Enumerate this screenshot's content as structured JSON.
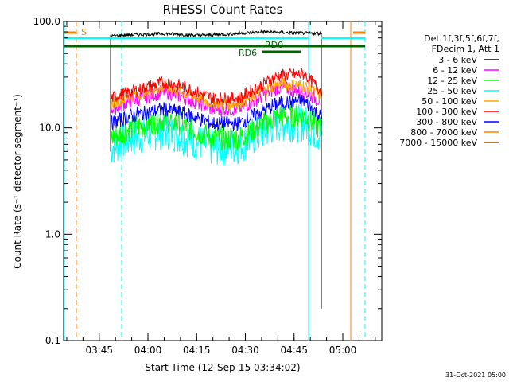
{
  "chart_data": {
    "type": "line",
    "title": "RHESSI Count Rates",
    "xlabel": "Start Time (12-Sep-15 03:34:02)",
    "ylabel": "Count Rate (s⁻¹ detector segment⁻¹)",
    "yscale": "log",
    "ylim": [
      0.1,
      100
    ],
    "xlim": [
      "03:34:02",
      "05:12:00"
    ],
    "ytick_labels": [
      "0.1",
      "1.0",
      "10.0",
      "100.0"
    ],
    "yticks": [
      0.1,
      1,
      10,
      100
    ],
    "xtick_labels": [
      "03:45",
      "04:00",
      "04:15",
      "04:30",
      "04:45",
      "05:00"
    ],
    "xticks": [
      "03:45",
      "04:00",
      "04:15",
      "04:30",
      "04:45",
      "05:00"
    ],
    "legend_header": [
      "Det 1f,3f,5f,6f,7f,",
      "FDecim 1, Att 1"
    ],
    "legend_placement": "right",
    "data_start": "03:48:30",
    "data_end": "04:53:30",
    "series": [
      {
        "name": "3 - 6 keV",
        "color": "#000000",
        "x": [
          "03:48:30",
          "03:55",
          "04:05",
          "04:15",
          "04:25",
          "04:35",
          "04:45",
          "04:53"
        ],
        "values": [
          73,
          75,
          77,
          74,
          76,
          80,
          78,
          77
        ]
      },
      {
        "name": "6 - 12 keV",
        "color": "#ff00ff",
        "x": [
          "03:48:30",
          "03:55",
          "04:05",
          "04:10",
          "04:20",
          "04:28",
          "04:40",
          "04:48",
          "04:53"
        ],
        "values": [
          15,
          18,
          22,
          20,
          15,
          15,
          24,
          22,
          18
        ]
      },
      {
        "name": "12 - 25 keV",
        "color": "#00ff00",
        "x": [
          "03:48:30",
          "03:55",
          "04:05",
          "04:10",
          "04:20",
          "04:28",
          "04:40",
          "04:48",
          "04:53"
        ],
        "values": [
          8,
          10,
          12,
          11,
          8,
          8,
          13,
          13,
          10
        ]
      },
      {
        "name": "25 - 50 keV",
        "color": "#00ffff",
        "x": [
          "03:48:30",
          "03:55",
          "04:05",
          "04:10",
          "04:20",
          "04:28",
          "04:40",
          "04:48",
          "04:53"
        ],
        "values": [
          6.5,
          8,
          9.5,
          8.5,
          6.5,
          6.8,
          11,
          11,
          8.5
        ]
      },
      {
        "name": "50 - 100 keV",
        "color": "#ffa500",
        "x": [
          "03:48:30",
          "03:55",
          "04:05",
          "04:10",
          "04:20",
          "04:28",
          "04:40",
          "04:48",
          "04:53"
        ],
        "values": [
          17,
          20,
          24,
          22,
          17,
          17,
          26,
          25,
          20
        ]
      },
      {
        "name": "100 - 300 keV",
        "color": "#ff0000",
        "x": [
          "03:48:30",
          "03:55",
          "04:05",
          "04:10",
          "04:20",
          "04:28",
          "04:40",
          "04:48",
          "04:53"
        ],
        "values": [
          19,
          22,
          27,
          25,
          19,
          19,
          31,
          32,
          23
        ]
      },
      {
        "name": "300 - 800 keV",
        "color": "#0000ff",
        "x": [
          "03:48:30",
          "03:55",
          "04:05",
          "04:10",
          "04:20",
          "04:28",
          "04:40",
          "04:48",
          "04:53"
        ],
        "values": [
          11,
          13,
          15,
          14,
          11,
          11,
          17,
          18,
          13
        ]
      },
      {
        "name": "800 - 7000 keV",
        "color": "#ff8000",
        "x": [],
        "values": []
      },
      {
        "name": "7000 - 15000 keV",
        "color": "#a05000",
        "x": [],
        "values": []
      }
    ],
    "annotations": {
      "attenuator_label": "S",
      "rd0_label": "RD0",
      "rd6_label": "RD6"
    },
    "grid": false
  }
}
